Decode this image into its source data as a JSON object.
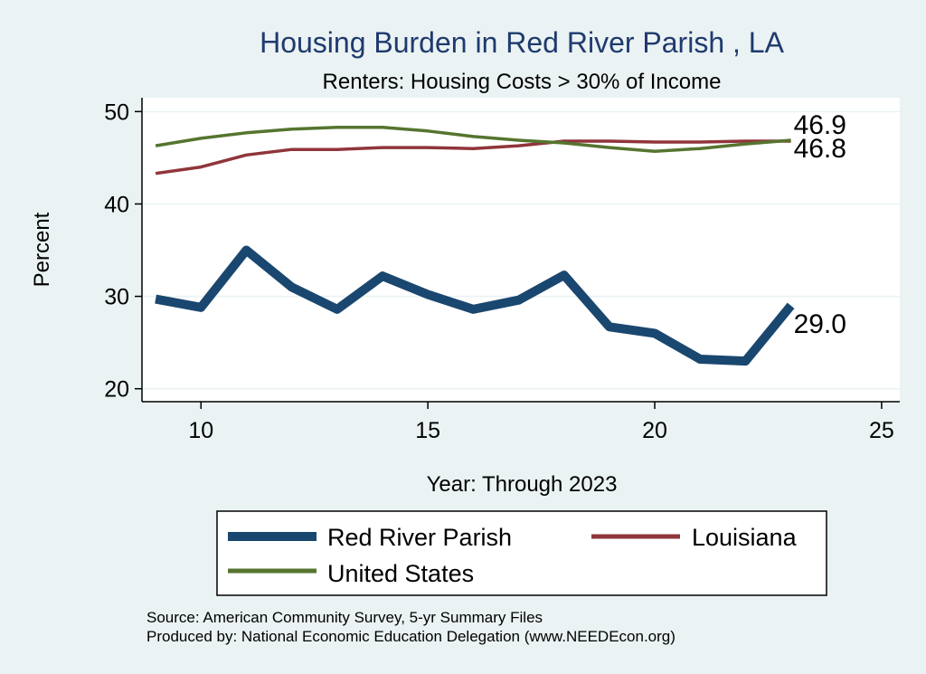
{
  "chart_data": {
    "type": "line",
    "title": "Housing Burden in Red River Parish , LA",
    "subtitle": "Renters: Housing Costs > 30% of Income",
    "xlabel": "Year: Through 2023",
    "ylabel": "Percent",
    "xlim": [
      8.7,
      25.4
    ],
    "ylim": [
      18.6,
      51.5
    ],
    "x_ticks": [
      "10",
      "15",
      "20",
      "25"
    ],
    "y_ticks": [
      "20",
      "30",
      "40",
      "50"
    ],
    "grid": true,
    "legend_position": "bottom",
    "x": [
      9,
      10,
      11,
      12,
      13,
      14,
      15,
      16,
      17,
      18,
      19,
      20,
      21,
      22,
      23
    ],
    "series": [
      {
        "name": "Red River Parish",
        "color": "#1a476f",
        "values": [
          29.7,
          28.8,
          35.0,
          31.0,
          28.6,
          32.2,
          30.2,
          28.6,
          29.6,
          32.3,
          26.7,
          26.0,
          23.2,
          23.0,
          29.0
        ],
        "end_label": "29.0"
      },
      {
        "name": "Louisiana",
        "color": "#90353b",
        "values": [
          43.3,
          44.0,
          45.3,
          45.9,
          45.9,
          46.1,
          46.1,
          46.0,
          46.3,
          46.8,
          46.8,
          46.7,
          46.7,
          46.8,
          46.8
        ],
        "end_label": "46.8"
      },
      {
        "name": "United States",
        "color": "#55752f",
        "values": [
          46.3,
          47.1,
          47.7,
          48.1,
          48.3,
          48.3,
          47.9,
          47.3,
          46.9,
          46.6,
          46.1,
          45.7,
          46.0,
          46.5,
          46.9
        ],
        "end_label": "46.9"
      }
    ],
    "notes": [
      "Source: American Community Survey, 5-yr Summary Files",
      "Produced by: National Economic Education Delegation (www.NEEDEcon.org)"
    ]
  }
}
